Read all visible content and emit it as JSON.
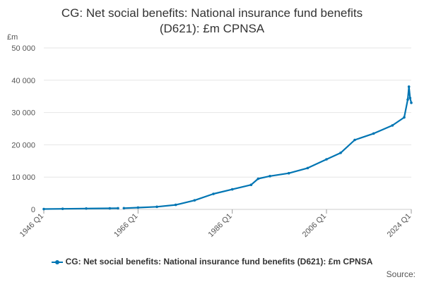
{
  "title_line1": "CG: Net social benefits: National insurance fund benefits",
  "title_line2": "(D621): £m CPNSA",
  "source_label": "Source:",
  "chart_data": {
    "type": "line",
    "title": "CG: Net social benefits: National insurance fund benefits (D621): £m CPNSA",
    "ylabel": "£m",
    "ylim": [
      0,
      50000
    ],
    "y_ticks": [
      0,
      10000,
      20000,
      30000,
      40000,
      50000
    ],
    "y_tick_labels": [
      "0",
      "10 000",
      "20 000",
      "30 000",
      "40 000",
      "50 000"
    ],
    "x_range": [
      1946.0,
      2024.0
    ],
    "x_ticks": [
      1946.0,
      1966.0,
      1986.0,
      2006.0,
      2024.0
    ],
    "x_tick_labels": [
      "1946 Q1",
      "1966 Q1",
      "1986 Q1",
      "2006 Q1",
      "2024 Q1"
    ],
    "grid": true,
    "legend_position": "bottom",
    "color": "#0075b3",
    "series": [
      {
        "name": "CG: Net social benefits: National insurance fund benefits (D621): £m CPNSA",
        "segments": [
          {
            "x": [
              1946.0,
              1950.0,
              1955.0,
              1960.0,
              1961.75
            ],
            "y": [
              100,
              180,
              260,
              320,
              350
            ]
          },
          {
            "x": [
              1963.0,
              1966.0,
              1970.0,
              1974.0,
              1978.0,
              1982.0,
              1986.0,
              1990.0,
              1991.5,
              1994.0,
              1998.0,
              2002.0,
              2006.0,
              2009.0,
              2012.0,
              2016.0,
              2020.0,
              2022.5,
              2023.25,
              2023.5,
              2023.75,
              2024.0
            ],
            "y": [
              380,
              550,
              800,
              1400,
              2800,
              4800,
              6200,
              7600,
              9500,
              10300,
              11200,
              12800,
              15500,
              17500,
              21500,
              23500,
              26000,
              28500,
              34000,
              38000,
              34500,
              33000
            ]
          }
        ]
      }
    ]
  }
}
